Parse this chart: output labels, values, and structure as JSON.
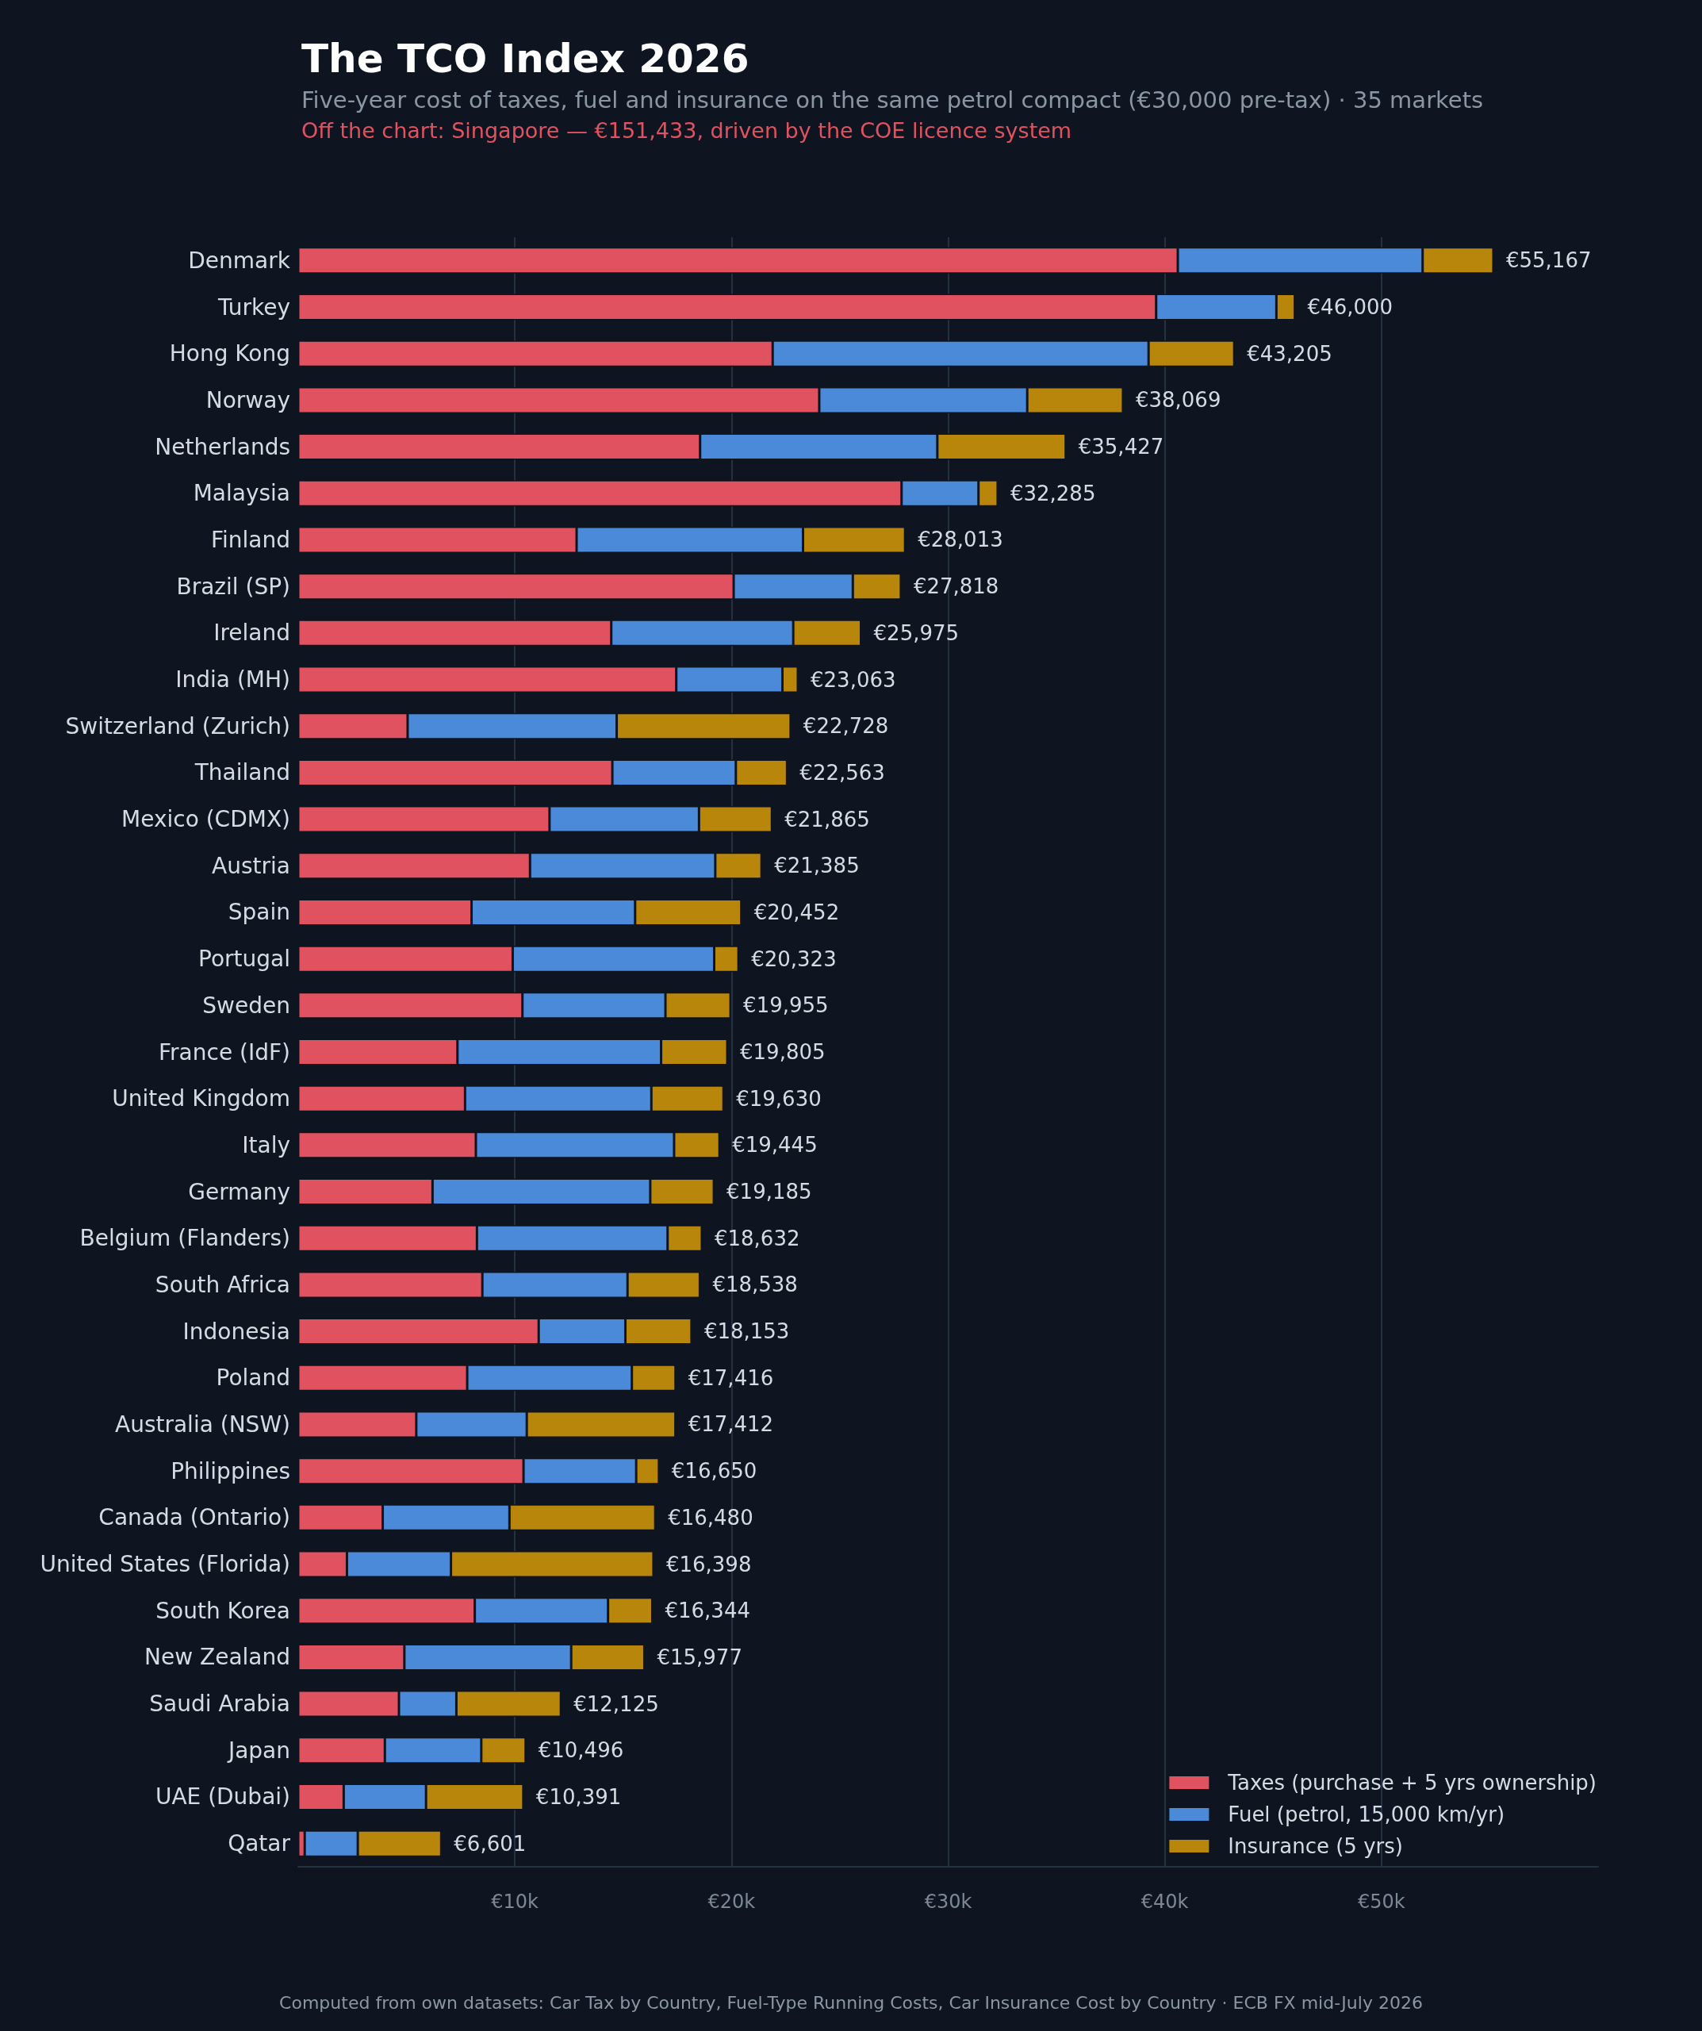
{
  "chart_data": {
    "type": "bar",
    "orientation": "horizontal",
    "stacked": true,
    "title": "The TCO Index 2026",
    "subtitle": "Five-year cost of taxes, fuel and insurance on the same petrol compact (€30,000 pre-tax) · 35 markets",
    "annotations": [
      "Off the chart: Singapore — €151,433, driven by the COE licence system",
      "Computed from own datasets: Car Tax by Country, Fuel-Type Running Costs, Car Insurance Cost by Country · ECB FX mid-July 2026"
    ],
    "categories": [
      "Denmark",
      "Turkey",
      "Hong Kong",
      "Norway",
      "Netherlands",
      "Malaysia",
      "Finland",
      "Brazil (SP)",
      "Ireland",
      "India (MH)",
      "Switzerland (Zurich)",
      "Thailand",
      "Mexico (CDMX)",
      "Austria",
      "Spain",
      "Portugal",
      "Sweden",
      "France (IdF)",
      "United Kingdom",
      "Italy",
      "Germany",
      "Belgium (Flanders)",
      "South Africa",
      "Indonesia",
      "Poland",
      "Australia (NSW)",
      "Philippines",
      "Canada (Ontario)",
      "United States (Florida)",
      "South Korea",
      "New Zealand",
      "Saudi Arabia",
      "Japan",
      "UAE (Dubai)",
      "Qatar"
    ],
    "series": [
      {
        "name": "Taxes (purchase + 5 yrs ownership)",
        "color": "#e05260",
        "values": [
          40600,
          39600,
          21900,
          24050,
          18550,
          27850,
          12850,
          20100,
          14450,
          17450,
          5050,
          14500,
          11600,
          10700,
          8000,
          9900,
          10350,
          7350,
          7700,
          8200,
          6200,
          8250,
          8500,
          11100,
          7800,
          5450,
          10400,
          3900,
          2250,
          8150,
          4900,
          4650,
          4000,
          2100,
          300
        ]
      },
      {
        "name": "Fuel (petrol, 15,000 km/yr)",
        "color": "#4a8ad8",
        "values": [
          11300,
          5550,
          17350,
          9600,
          10950,
          3550,
          10450,
          5500,
          8400,
          4900,
          9650,
          5700,
          6900,
          8550,
          7550,
          9300,
          6600,
          9400,
          8600,
          9150,
          10050,
          8800,
          6700,
          4000,
          7600,
          5100,
          5200,
          5850,
          4800,
          6150,
          7700,
          2650,
          4450,
          3800,
          2450
        ]
      },
      {
        "name": "Insurance (5 yrs)",
        "color": "#b8860b",
        "values": [
          3267,
          850,
          3955,
          4419,
          5927,
          885,
          4713,
          2218,
          3125,
          713,
          8028,
          2363,
          3365,
          2135,
          4902,
          1123,
          3005,
          3055,
          3330,
          2095,
          2935,
          1582,
          3338,
          3053,
          2016,
          6862,
          1050,
          6730,
          9348,
          2044,
          3377,
          4825,
          2046,
          4491,
          3851
        ]
      }
    ],
    "totals": [
      "€55,167",
      "€46,000",
      "€43,205",
      "€38,069",
      "€35,427",
      "€32,285",
      "€28,013",
      "€27,818",
      "€25,975",
      "€23,063",
      "€22,728",
      "€22,563",
      "€21,865",
      "€21,385",
      "€20,452",
      "€20,323",
      "€19,955",
      "€19,805",
      "€19,630",
      "€19,445",
      "€19,185",
      "€18,632",
      "€18,538",
      "€18,153",
      "€17,416",
      "€17,412",
      "€16,650",
      "€16,480",
      "€16,398",
      "€16,344",
      "€15,977",
      "€12,125",
      "€10,496",
      "€10,391",
      "€6,601"
    ],
    "xlim": [
      0,
      60000
    ],
    "xticks": [
      {
        "value": 10000,
        "label": "€10k"
      },
      {
        "value": 20000,
        "label": "€20k"
      },
      {
        "value": 30000,
        "label": "€30k"
      },
      {
        "value": 40000,
        "label": "€40k"
      },
      {
        "value": 50000,
        "label": "€50k"
      }
    ],
    "grid": "x",
    "legend": "bottom right"
  }
}
